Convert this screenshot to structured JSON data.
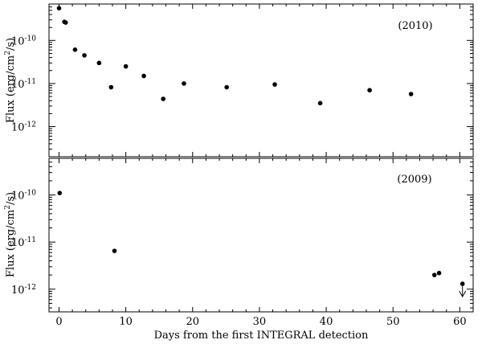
{
  "chart_data": [
    {
      "type": "scatter",
      "panel_label": "(2010)",
      "ylabel_base": "Flux (erg/cm",
      "ylabel_sup": "2",
      "ylabel_tail": "/s)",
      "yscale": "log",
      "ylim": [
        2e-13,
        7e-10
      ],
      "xlim": [
        -1.5,
        62
      ],
      "y_ticks": [
        {
          "value": 1e-10,
          "base": "10",
          "exp": "-10"
        },
        {
          "value": 1e-11,
          "base": "10",
          "exp": "-11"
        },
        {
          "value": 1e-12,
          "base": "10",
          "exp": "-12"
        }
      ],
      "points": [
        {
          "x": 0.0,
          "y": 5.6e-10
        },
        {
          "x": 0.8,
          "y": 2.7e-10
        },
        {
          "x": 1.0,
          "y": 2.6e-10
        },
        {
          "x": 2.4,
          "y": 6.1e-11
        },
        {
          "x": 3.8,
          "y": 4.5e-11
        },
        {
          "x": 6.0,
          "y": 3e-11
        },
        {
          "x": 7.8,
          "y": 8.2e-12
        },
        {
          "x": 10.0,
          "y": 2.5e-11
        },
        {
          "x": 12.7,
          "y": 1.5e-11
        },
        {
          "x": 15.6,
          "y": 4.4e-12
        },
        {
          "x": 18.7,
          "y": 1e-11
        },
        {
          "x": 25.1,
          "y": 8.2e-12
        },
        {
          "x": 32.3,
          "y": 9.5e-12
        },
        {
          "x": 39.1,
          "y": 3.5e-12
        },
        {
          "x": 46.5,
          "y": 7e-12
        },
        {
          "x": 52.7,
          "y": 5.7e-12
        }
      ],
      "upper_limits": []
    },
    {
      "type": "scatter",
      "panel_label": "(2009)",
      "ylabel_base": "Flux (erg/cm",
      "ylabel_sup": "2",
      "ylabel_tail": "/s)",
      "yscale": "log",
      "ylim": [
        3.3e-13,
        6e-10
      ],
      "xlim": [
        -1.5,
        62
      ],
      "y_ticks": [
        {
          "value": 1e-10,
          "base": "10",
          "exp": "-10"
        },
        {
          "value": 1e-11,
          "base": "10",
          "exp": "-11"
        },
        {
          "value": 1e-12,
          "base": "10",
          "exp": "-12"
        }
      ],
      "points": [
        {
          "x": 0.1,
          "y": 1.1e-10
        },
        {
          "x": 8.3,
          "y": 6.5e-12
        },
        {
          "x": 56.2,
          "y": 2e-12
        },
        {
          "x": 56.9,
          "y": 2.2e-12
        },
        {
          "x": 60.4,
          "y": 1.3e-12
        }
      ],
      "upper_limits": [
        {
          "x": 60.4,
          "y": 1.3e-12
        }
      ]
    }
  ],
  "x_axis": {
    "label": "Days from the first INTEGRAL detection",
    "ticks": [
      {
        "value": 0,
        "label": "0"
      },
      {
        "value": 10,
        "label": "10"
      },
      {
        "value": 20,
        "label": "20"
      },
      {
        "value": 30,
        "label": "30"
      },
      {
        "value": 40,
        "label": "40"
      },
      {
        "value": 50,
        "label": "50"
      },
      {
        "value": 60,
        "label": "60"
      }
    ]
  }
}
